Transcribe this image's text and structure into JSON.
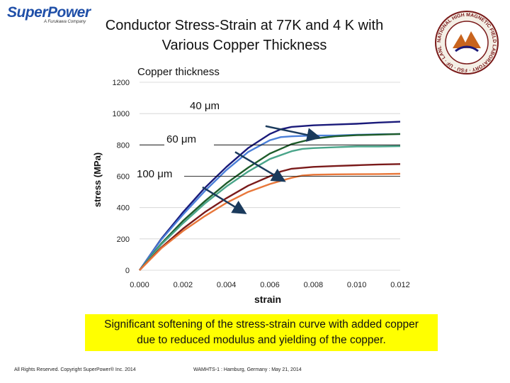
{
  "header": {
    "logo_text": "SuperPower",
    "logo_sub": "A Furukawa Company",
    "title_line1": "Conductor Stress-Strain at 77K and 4 K with",
    "title_line2": "Various Copper Thickness",
    "seal_text": "NATIONAL HIGH MAGNETIC FIELD LABORATORY · FSU · UF · LANL"
  },
  "chart_data": {
    "type": "line",
    "xlabel": "strain",
    "ylabel": "stress (MPa)",
    "xlim": [
      0,
      0.012
    ],
    "ylim": [
      0,
      1200
    ],
    "xticks": [
      "0.000",
      "0.002",
      "0.004",
      "0.006",
      "0.008",
      "0.010",
      "0.012"
    ],
    "yticks": [
      "0",
      "200",
      "400",
      "600",
      "800",
      "1000",
      "1200"
    ],
    "grid": "horizontal",
    "series": [
      {
        "color": "#1a1a7a",
        "points": [
          [
            0,
            0
          ],
          [
            0.001,
            200
          ],
          [
            0.002,
            370
          ],
          [
            0.003,
            525
          ],
          [
            0.004,
            660
          ],
          [
            0.005,
            780
          ],
          [
            0.006,
            870
          ],
          [
            0.0065,
            900
          ],
          [
            0.007,
            915
          ],
          [
            0.008,
            925
          ],
          [
            0.009,
            930
          ],
          [
            0.01,
            935
          ],
          [
            0.011,
            943
          ],
          [
            0.012,
            948
          ]
        ]
      },
      {
        "color": "#4a7fd8",
        "points": [
          [
            0,
            0
          ],
          [
            0.001,
            195
          ],
          [
            0.002,
            355
          ],
          [
            0.003,
            505
          ],
          [
            0.004,
            640
          ],
          [
            0.005,
            755
          ],
          [
            0.006,
            830
          ],
          [
            0.0065,
            850
          ],
          [
            0.007,
            855
          ],
          [
            0.008,
            860
          ],
          [
            0.009,
            860
          ],
          [
            0.01,
            865
          ],
          [
            0.011,
            868
          ],
          [
            0.012,
            870
          ]
        ]
      },
      {
        "color": "#1e5c2a",
        "points": [
          [
            0,
            0
          ],
          [
            0.001,
            170
          ],
          [
            0.002,
            315
          ],
          [
            0.003,
            440
          ],
          [
            0.004,
            555
          ],
          [
            0.005,
            655
          ],
          [
            0.006,
            745
          ],
          [
            0.007,
            805
          ],
          [
            0.008,
            840
          ],
          [
            0.009,
            855
          ],
          [
            0.01,
            862
          ],
          [
            0.011,
            866
          ],
          [
            0.012,
            870
          ]
        ]
      },
      {
        "color": "#4aa58a",
        "points": [
          [
            0,
            0
          ],
          [
            0.001,
            165
          ],
          [
            0.002,
            300
          ],
          [
            0.003,
            425
          ],
          [
            0.004,
            535
          ],
          [
            0.005,
            630
          ],
          [
            0.006,
            710
          ],
          [
            0.007,
            760
          ],
          [
            0.0075,
            775
          ],
          [
            0.008,
            780
          ],
          [
            0.009,
            785
          ],
          [
            0.01,
            790
          ],
          [
            0.011,
            790
          ],
          [
            0.012,
            792
          ]
        ]
      },
      {
        "color": "#7a1a1a",
        "points": [
          [
            0,
            0
          ],
          [
            0.001,
            145
          ],
          [
            0.002,
            265
          ],
          [
            0.003,
            370
          ],
          [
            0.004,
            460
          ],
          [
            0.005,
            540
          ],
          [
            0.006,
            600
          ],
          [
            0.0065,
            630
          ],
          [
            0.007,
            648
          ],
          [
            0.008,
            660
          ],
          [
            0.009,
            665
          ],
          [
            0.01,
            670
          ],
          [
            0.011,
            675
          ],
          [
            0.012,
            678
          ]
        ]
      },
      {
        "color": "#e8773a",
        "points": [
          [
            0,
            0
          ],
          [
            0.001,
            140
          ],
          [
            0.002,
            250
          ],
          [
            0.003,
            345
          ],
          [
            0.004,
            430
          ],
          [
            0.005,
            500
          ],
          [
            0.006,
            550
          ],
          [
            0.007,
            590
          ],
          [
            0.0075,
            605
          ],
          [
            0.008,
            610
          ],
          [
            0.009,
            612
          ],
          [
            0.01,
            613
          ],
          [
            0.011,
            614
          ],
          [
            0.012,
            616
          ]
        ]
      }
    ],
    "annotations": {
      "heading": "Copper thickness",
      "labels": [
        "40 μm",
        "60 μm",
        "100 μm"
      ],
      "arrows": [
        {
          "from": [
            0.0058,
            920
          ],
          "to": [
            0.0082,
            850
          ]
        },
        {
          "from": [
            0.0044,
            755
          ],
          "to": [
            0.0066,
            575
          ]
        },
        {
          "from": [
            0.0029,
            530
          ],
          "to": [
            0.0048,
            370
          ]
        }
      ]
    }
  },
  "caption": {
    "line1": "Significant softening of the stress-strain curve with added copper",
    "line2": "due to reduced modulus and yielding of the copper."
  },
  "footer": {
    "left": "All Rights Reserved. Copyright SuperPower® Inc. 2014",
    "right": "WAMHTS-1 : Hamburg, Germany : May 21, 2014"
  }
}
